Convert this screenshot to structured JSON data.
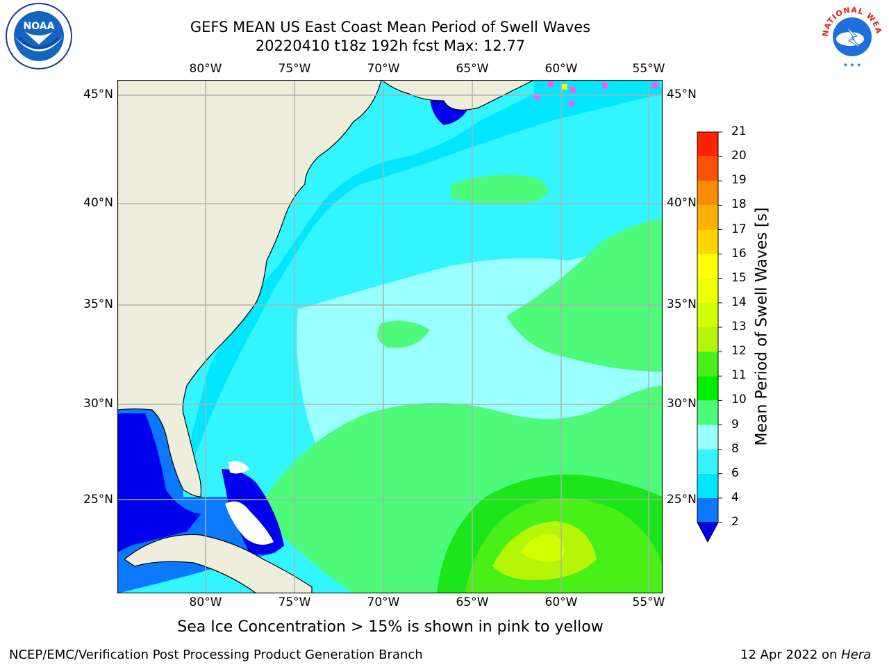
{
  "header": {
    "title_line1": "GEFS MEAN US East Coast Mean Period of Swell Waves",
    "title_line2": "20220410 t18z 192h fcst   Max: 12.77"
  },
  "logos": {
    "left": {
      "icon": "noaa-logo",
      "text": "NOAA"
    },
    "right": {
      "icon": "national-weather-service-logo",
      "text": "NATIONAL WEATHER SERVICE"
    }
  },
  "map": {
    "lon_labels": [
      "80°W",
      "75°W",
      "70°W",
      "65°W",
      "60°W",
      "55°W"
    ],
    "lat_labels": [
      "45°N",
      "40°N",
      "35°N",
      "30°N",
      "25°N"
    ],
    "land_color": "#efeedd",
    "grid_color": "#b0b0b0",
    "field_colors": {
      "lt2": "#0000ee",
      "2_4": "#0a78ff",
      "4_6": "#00e6ff",
      "6_8": "#33f5ff",
      "8_9": "#99ffff",
      "9_10": "#4dfa7a",
      "10_11": "#1ae61a",
      "11_12": "#48f018",
      "12_13": "#b4f50a",
      "13_14": "#d2ff00"
    },
    "sea_ice_colors": [
      "#ff55ff",
      "#ffff00"
    ]
  },
  "colorbar": {
    "label": "Mean Period of Swell Waves [s]",
    "ticks": [
      "2",
      "4",
      "6",
      "8",
      "9",
      "10",
      "11",
      "12",
      "13",
      "14",
      "15",
      "16",
      "17",
      "18",
      "19",
      "20",
      "21"
    ],
    "colors": [
      "#0a78ff",
      "#00e6ff",
      "#33f5ff",
      "#99ffff",
      "#4dfa7a",
      "#00ee00",
      "#48f018",
      "#b4f50a",
      "#d2ff00",
      "#eeff00",
      "#ffff00",
      "#ffd400",
      "#ffb000",
      "#ff8c00",
      "#ff5000",
      "#ff2200"
    ],
    "under_color": "#0000ee"
  },
  "footer": {
    "sea_ice_note": "Sea Ice Concentration > 15% is shown in pink to yellow",
    "credit": "NCEP/EMC/Verification Post Processing Product Generation Branch",
    "date": "12 Apr 2022 on ",
    "host": "Hera"
  }
}
